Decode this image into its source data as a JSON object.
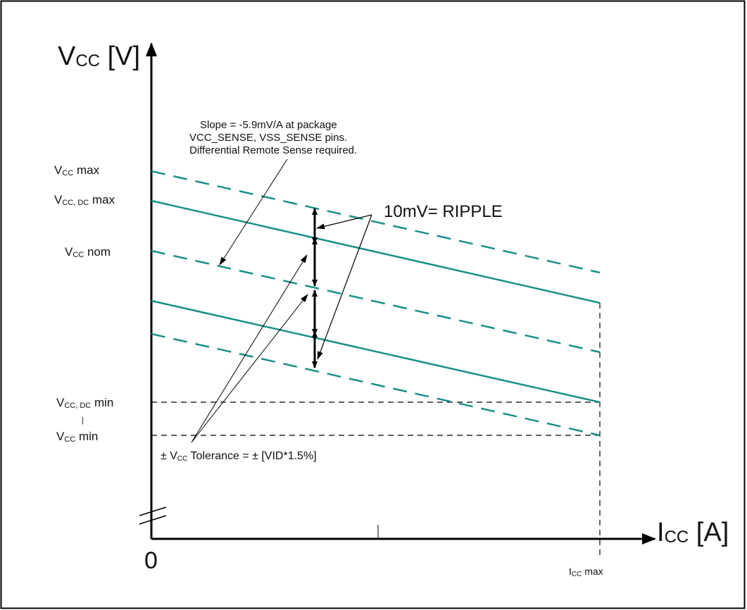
{
  "axes": {
    "y_title": "V",
    "y_title_sub": "CC",
    "y_title_unit": " [V]",
    "x_title": "I",
    "x_title_sub": "CC",
    "x_title_unit": " [A]",
    "origin": "0"
  },
  "y_labels": {
    "vcc_max": {
      "pre": "V",
      "sub": "CC",
      "post": " max"
    },
    "vcc_dc_max": {
      "pre": "V",
      "sub": "CC, DC",
      "post": " max"
    },
    "vcc_nom": {
      "pre": "V",
      "sub": "CC",
      "post": " nom"
    },
    "vcc_dc_min": {
      "pre": "V",
      "sub": "CC, DC",
      "post": " min"
    },
    "vcc_min": {
      "pre": "V",
      "sub": "CC",
      "post": " min"
    },
    "tick_mark": "|"
  },
  "x_labels": {
    "icc_max": {
      "pre": "I",
      "sub": "CC",
      "post": " max"
    }
  },
  "annotations": {
    "slope_note": [
      "Slope = -5.9mV/A at package",
      "VCC_SENSE, VSS_SENSE pins.",
      "Differential Remote Sense required."
    ],
    "ripple": "10mV= RIPPLE",
    "tolerance": {
      "pre": "± V",
      "sub": "CC",
      "post": " Tolerance = ± [VID*1.5%]"
    }
  },
  "colors": {
    "line": "#1a8f88",
    "ink": "#000000",
    "border": "#000000"
  }
}
